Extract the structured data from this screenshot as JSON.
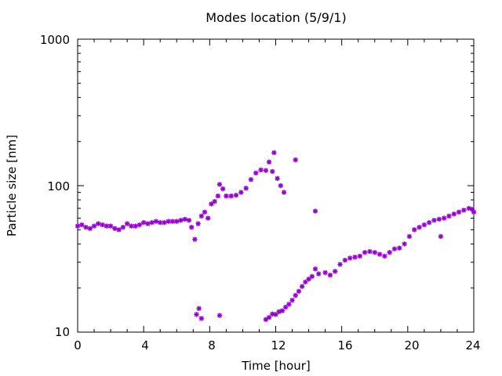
{
  "chart_data": {
    "type": "scatter",
    "title": "Modes location (5/9/1)",
    "xlabel": "Time [hour]",
    "ylabel": "Particle size [nm]",
    "xlim": [
      0,
      24
    ],
    "ylim": [
      10,
      1000
    ],
    "yscale": "log",
    "x_ticks": [
      "0",
      "4",
      "8",
      "12",
      "16",
      "20",
      "24"
    ],
    "y_ticks": [
      "10",
      "100",
      "1000"
    ],
    "grid": false,
    "marker": "star",
    "color": "#9400d3",
    "series": [
      {
        "points": [
          [
            0.0,
            53
          ],
          [
            0.25,
            54
          ],
          [
            0.5,
            52
          ],
          [
            0.75,
            51
          ],
          [
            1.0,
            53
          ],
          [
            1.25,
            55
          ],
          [
            1.5,
            54
          ],
          [
            1.75,
            53
          ],
          [
            2.0,
            53
          ],
          [
            2.25,
            51
          ],
          [
            2.5,
            50
          ],
          [
            2.75,
            52
          ],
          [
            3.0,
            55
          ],
          [
            3.25,
            53
          ],
          [
            3.5,
            53
          ],
          [
            3.75,
            54
          ],
          [
            4.0,
            56
          ],
          [
            4.25,
            55
          ],
          [
            4.5,
            56
          ],
          [
            4.75,
            57
          ],
          [
            5.0,
            56
          ],
          [
            5.25,
            56
          ],
          [
            5.5,
            57
          ],
          [
            5.75,
            57
          ],
          [
            6.0,
            57
          ],
          [
            6.25,
            58
          ],
          [
            6.5,
            59
          ],
          [
            6.75,
            58
          ],
          [
            6.9,
            52
          ],
          [
            7.1,
            43
          ],
          [
            7.3,
            55
          ],
          [
            7.5,
            62
          ],
          [
            7.7,
            66
          ],
          [
            7.9,
            60
          ],
          [
            8.1,
            75
          ],
          [
            8.3,
            78
          ],
          [
            8.5,
            85
          ],
          [
            8.6,
            102
          ],
          [
            8.8,
            95
          ],
          [
            9.0,
            85
          ],
          [
            9.3,
            85
          ],
          [
            9.6,
            86
          ],
          [
            9.9,
            90
          ],
          [
            10.2,
            96
          ],
          [
            10.5,
            110
          ],
          [
            10.8,
            122
          ],
          [
            11.1,
            128
          ],
          [
            11.4,
            127
          ],
          [
            11.6,
            145
          ],
          [
            11.8,
            125
          ],
          [
            11.9,
            168
          ],
          [
            12.1,
            112
          ],
          [
            12.3,
            100
          ],
          [
            12.5,
            90
          ],
          [
            13.2,
            150
          ],
          [
            14.4,
            67
          ],
          [
            14.4,
            27
          ],
          [
            22.0,
            45
          ],
          [
            7.2,
            13.2
          ],
          [
            7.35,
            14.5
          ],
          [
            7.5,
            12.4
          ],
          [
            8.6,
            13.0
          ],
          [
            11.4,
            12.2
          ],
          [
            11.6,
            12.6
          ],
          [
            11.8,
            13.3
          ],
          [
            12.0,
            13.2
          ],
          [
            12.2,
            13.8
          ],
          [
            12.4,
            14.0
          ],
          [
            12.6,
            14.8
          ],
          [
            12.8,
            15.5
          ],
          [
            13.0,
            16.5
          ],
          [
            13.2,
            17.8
          ],
          [
            13.4,
            19.0
          ],
          [
            13.6,
            20.5
          ],
          [
            13.8,
            22.0
          ],
          [
            14.0,
            23.0
          ],
          [
            14.2,
            24.0
          ],
          [
            14.6,
            25.0
          ],
          [
            15.0,
            25.5
          ],
          [
            15.3,
            24.5
          ],
          [
            15.6,
            26.0
          ],
          [
            15.9,
            29.0
          ],
          [
            16.2,
            31.0
          ],
          [
            16.5,
            32.0
          ],
          [
            16.8,
            32.5
          ],
          [
            17.1,
            33.0
          ],
          [
            17.4,
            35.0
          ],
          [
            17.7,
            35.5
          ],
          [
            18.0,
            35.0
          ],
          [
            18.3,
            34.0
          ],
          [
            18.6,
            33.0
          ],
          [
            18.9,
            35.0
          ],
          [
            19.2,
            37.0
          ],
          [
            19.5,
            37.5
          ],
          [
            19.8,
            40.0
          ],
          [
            20.1,
            45.0
          ],
          [
            20.4,
            50.0
          ],
          [
            20.7,
            52.0
          ],
          [
            21.0,
            54.0
          ],
          [
            21.3,
            56.0
          ],
          [
            21.6,
            58.0
          ],
          [
            21.9,
            59.0
          ],
          [
            22.2,
            60.0
          ],
          [
            22.5,
            62.0
          ],
          [
            22.8,
            64.0
          ],
          [
            23.1,
            66.0
          ],
          [
            23.4,
            68.0
          ],
          [
            23.7,
            70.0
          ],
          [
            23.9,
            69.0
          ],
          [
            24.0,
            66.0
          ]
        ]
      }
    ]
  }
}
